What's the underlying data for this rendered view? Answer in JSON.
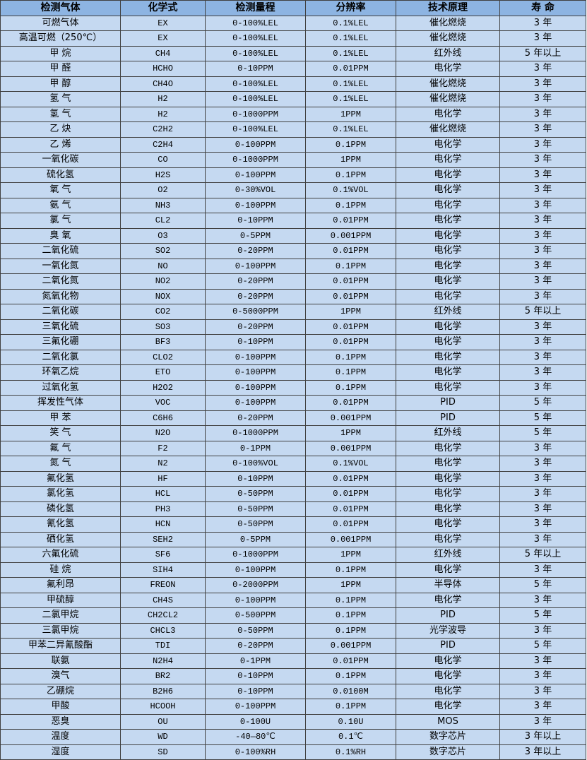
{
  "colors": {
    "header_bg": "#8db4e2",
    "row_bg": "#c5d9f1",
    "border": "#404040"
  },
  "headers": [
    "检测气体",
    "化学式",
    "检测量程",
    "分辨率",
    "技术原理",
    "寿 命"
  ],
  "rows": [
    [
      "可燃气体",
      "EX",
      "0-100%LEL",
      "0.1%LEL",
      "催化燃烧",
      "3 年"
    ],
    [
      "高温可燃（250℃）",
      "EX",
      "0-100%LEL",
      "0.1%LEL",
      "催化燃烧",
      "3 年"
    ],
    [
      "甲 烷",
      "CH4",
      "0-100%LEL",
      "0.1%LEL",
      "红外线",
      "5 年以上"
    ],
    [
      "甲 醛",
      "HCHO",
      "0-10PPM",
      "0.01PPM",
      "电化学",
      "3 年"
    ],
    [
      "甲 醇",
      "CH4O",
      "0-100%LEL",
      "0.1%LEL",
      "催化燃烧",
      "3 年"
    ],
    [
      "氢 气",
      "H2",
      "0-100%LEL",
      "0.1%LEL",
      "催化燃烧",
      "3 年"
    ],
    [
      "氢 气",
      "H2",
      "0-1000PPM",
      "1PPM",
      "电化学",
      "3 年"
    ],
    [
      "乙 炔",
      "C2H2",
      "0-100%LEL",
      "0.1%LEL",
      "催化燃烧",
      "3 年"
    ],
    [
      "乙 烯",
      "C2H4",
      "0-100PPM",
      "0.1PPM",
      "电化学",
      "3 年"
    ],
    [
      "一氧化碳",
      "CO",
      "0-1000PPM",
      "1PPM",
      "电化学",
      "3 年"
    ],
    [
      "硫化氢",
      "H2S",
      "0-100PPM",
      "0.1PPM",
      "电化学",
      "3 年"
    ],
    [
      "氧 气",
      "O2",
      "0-30%VOL",
      "0.1%VOL",
      "电化学",
      "3 年"
    ],
    [
      "氨 气",
      "NH3",
      "0-100PPM",
      "0.1PPM",
      "电化学",
      "3 年"
    ],
    [
      "氯 气",
      "CL2",
      "0-10PPM",
      "0.01PPM",
      "电化学",
      "3 年"
    ],
    [
      "臭 氧",
      "O3",
      "0-5PPM",
      "0.001PPM",
      "电化学",
      "3 年"
    ],
    [
      "二氧化硫",
      "SO2",
      "0-20PPM",
      "0.01PPM",
      "电化学",
      "3 年"
    ],
    [
      "一氧化氮",
      "NO",
      "0-100PPM",
      "0.1PPM",
      "电化学",
      "3 年"
    ],
    [
      "二氧化氮",
      "NO2",
      "0-20PPM",
      "0.01PPM",
      "电化学",
      "3 年"
    ],
    [
      "氮氧化物",
      "NOX",
      "0-20PPM",
      "0.01PPM",
      "电化学",
      "3 年"
    ],
    [
      "二氧化碳",
      "CO2",
      "0-5000PPM",
      "1PPM",
      "红外线",
      "5 年以上"
    ],
    [
      "三氧化硫",
      "SO3",
      "0-20PPM",
      "0.01PPM",
      "电化学",
      "3 年"
    ],
    [
      "三氟化硼",
      "BF3",
      "0-10PPM",
      "0.01PPM",
      "电化学",
      "3 年"
    ],
    [
      "二氧化氯",
      "CLO2",
      "0-100PPM",
      "0.1PPM",
      "电化学",
      "3 年"
    ],
    [
      "环氧乙烷",
      "ETO",
      "0-100PPM",
      "0.1PPM",
      "电化学",
      "3 年"
    ],
    [
      "过氧化氢",
      "H2O2",
      "0-100PPM",
      "0.1PPM",
      "电化学",
      "3 年"
    ],
    [
      "挥发性气体",
      "VOC",
      "0-100PPM",
      "0.01PPM",
      "PID",
      "5 年"
    ],
    [
      "甲 苯",
      "C6H6",
      "0-20PPM",
      "0.001PPM",
      "PID",
      "5 年"
    ],
    [
      "笑 气",
      "N2O",
      "0-1000PPM",
      "1PPM",
      "红外线",
      "5 年"
    ],
    [
      "氟 气",
      "F2",
      "0-1PPM",
      "0.001PPM",
      "电化学",
      "3 年"
    ],
    [
      "氮 气",
      "N2",
      "0-100%VOL",
      "0.1%VOL",
      "电化学",
      "3 年"
    ],
    [
      "氟化氢",
      "HF",
      "0-10PPM",
      "0.01PPM",
      "电化学",
      "3 年"
    ],
    [
      "氯化氢",
      "HCL",
      "0-50PPM",
      "0.01PPM",
      "电化学",
      "3 年"
    ],
    [
      "磷化氢",
      "PH3",
      "0-50PPM",
      "0.01PPM",
      "电化学",
      "3 年"
    ],
    [
      "氰化氢",
      "HCN",
      "0-50PPM",
      "0.01PPM",
      "电化学",
      "3 年"
    ],
    [
      "硒化氢",
      "SEH2",
      "0-5PPM",
      "0.001PPM",
      "电化学",
      "3 年"
    ],
    [
      "六氟化硫",
      "SF6",
      "0-1000PPM",
      "1PPM",
      "红外线",
      "5 年以上"
    ],
    [
      "硅 烷",
      "SIH4",
      "0-100PPM",
      "0.1PPM",
      "电化学",
      "3 年"
    ],
    [
      "氟利昂",
      "FREON",
      "0-2000PPM",
      "1PPM",
      "半导体",
      "5 年"
    ],
    [
      "甲硫醇",
      "CH4S",
      "0-100PPM",
      "0.1PPM",
      "电化学",
      "3 年"
    ],
    [
      "二氯甲烷",
      "CH2CL2",
      "0-500PPM",
      "0.1PPM",
      "PID",
      "5 年"
    ],
    [
      "三氯甲烷",
      "CHCL3",
      "0-50PPM",
      "0.1PPM",
      "光学波导",
      "3 年"
    ],
    [
      "甲苯二异氰酸酯",
      "TDI",
      "0-20PPM",
      "0.001PPM",
      "PID",
      "5 年"
    ],
    [
      "联氨",
      "N2H4",
      "0-1PPM",
      "0.01PPM",
      "电化学",
      "3 年"
    ],
    [
      "溴气",
      "BR2",
      "0-10PPM",
      "0.1PPM",
      "电化学",
      "3 年"
    ],
    [
      "乙硼烷",
      "B2H6",
      "0-10PPM",
      "0.0100M",
      "电化学",
      "3 年"
    ],
    [
      "甲酸",
      "HCOOH",
      "0-100PPM",
      "0.1PPM",
      "电化学",
      "3 年"
    ],
    [
      "恶臭",
      "OU",
      "0-100U",
      "0.10U",
      "MOS",
      "3 年"
    ],
    [
      "温度",
      "WD",
      "-40—80℃",
      "0.1℃",
      "数字芯片",
      "3 年以上"
    ],
    [
      "湿度",
      "SD",
      "0-100%RH",
      "0.1%RH",
      "数字芯片",
      "3 年以上"
    ]
  ]
}
